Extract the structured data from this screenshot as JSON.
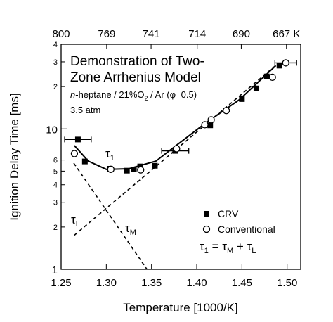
{
  "chart_data": {
    "type": "scatter",
    "title_lines": [
      "Demonstration of Two-",
      "Zone Arrhenius Model"
    ],
    "subtitle_parts": [
      "n",
      "-heptane / 21%O",
      "2",
      " / Ar (φ=0.5)"
    ],
    "pressure": "3.5 atm",
    "xlabel": "Temperature [1000/K]",
    "ylabel": "Ignition Delay Time [ms]",
    "xlim": [
      1.25,
      1.515
    ],
    "xticks": [
      {
        "value": 1.25,
        "label": "1.25"
      },
      {
        "value": 1.3,
        "label": "1.30"
      },
      {
        "value": 1.35,
        "label": "1.35"
      },
      {
        "value": 1.4,
        "label": "1.40"
      },
      {
        "value": 1.45,
        "label": "1.45"
      },
      {
        "value": 1.5,
        "label": "1.50"
      }
    ],
    "x2ticks": [
      800,
      769,
      741,
      714,
      690,
      {
        "value": 667,
        "label": "667 K"
      }
    ],
    "ylim": [
      1,
      40
    ],
    "log_y": true,
    "yticks": [
      1,
      2,
      3,
      4,
      5,
      6,
      10,
      {
        "value": 20,
        "label": "2"
      },
      {
        "value": 30,
        "label": "3"
      },
      {
        "value": 40,
        "label": "4"
      }
    ],
    "series": [
      {
        "name": "CRV",
        "marker": "square",
        "color": "#000000",
        "x": [
          1.2686,
          1.2763,
          1.304,
          1.3228,
          1.3305,
          1.3375,
          1.3537,
          1.3762,
          1.4149,
          1.45,
          1.466,
          1.4775,
          1.4915
        ],
        "values": [
          8.4,
          5.86,
          5.2,
          5.04,
          5.14,
          5.4,
          5.46,
          6.97,
          10.6,
          16.3,
          19.4,
          23.6,
          28.2
        ],
        "xerr": [
          0.0147,
          null,
          null,
          null,
          null,
          null,
          null,
          0.015,
          null,
          null,
          null,
          null,
          null
        ]
      },
      {
        "name": "Conventional",
        "marker": "circle",
        "color": "#000000",
        "x": [
          1.2647,
          1.305,
          1.338,
          1.3777,
          1.409,
          1.416,
          1.4327,
          1.4837,
          1.4985
        ],
        "values": [
          6.66,
          5.15,
          5.1,
          7.22,
          10.7,
          11.6,
          13.5,
          23.3,
          29.5
        ],
        "xerr": [
          null,
          null,
          null,
          null,
          null,
          null,
          null,
          null,
          0.012
        ]
      }
    ],
    "fit": {
      "x": [
        1.2647,
        1.28,
        1.3,
        1.325,
        1.355,
        1.3777,
        1.409,
        1.447,
        1.4875
      ],
      "values": [
        7.6,
        5.9,
        5.15,
        5.2,
        5.9,
        7.65,
        10.9,
        16.1,
        28.2
      ]
    },
    "tau_m_line": {
      "x": [
        1.264,
        1.345
      ],
      "values": [
        5.7,
        1
      ]
    },
    "tau_l_line": {
      "x": [
        1.2647,
        1.488
      ],
      "values": [
        1.75,
        28.5
      ]
    },
    "tau_1_label": [
      "τ",
      "1"
    ],
    "tau_l_label": [
      "τ",
      "L"
    ],
    "tau_m_label": [
      "τ",
      "M"
    ],
    "equation_parts": [
      "τ",
      "1",
      " = τ",
      "M",
      " + τ",
      "L"
    ]
  }
}
